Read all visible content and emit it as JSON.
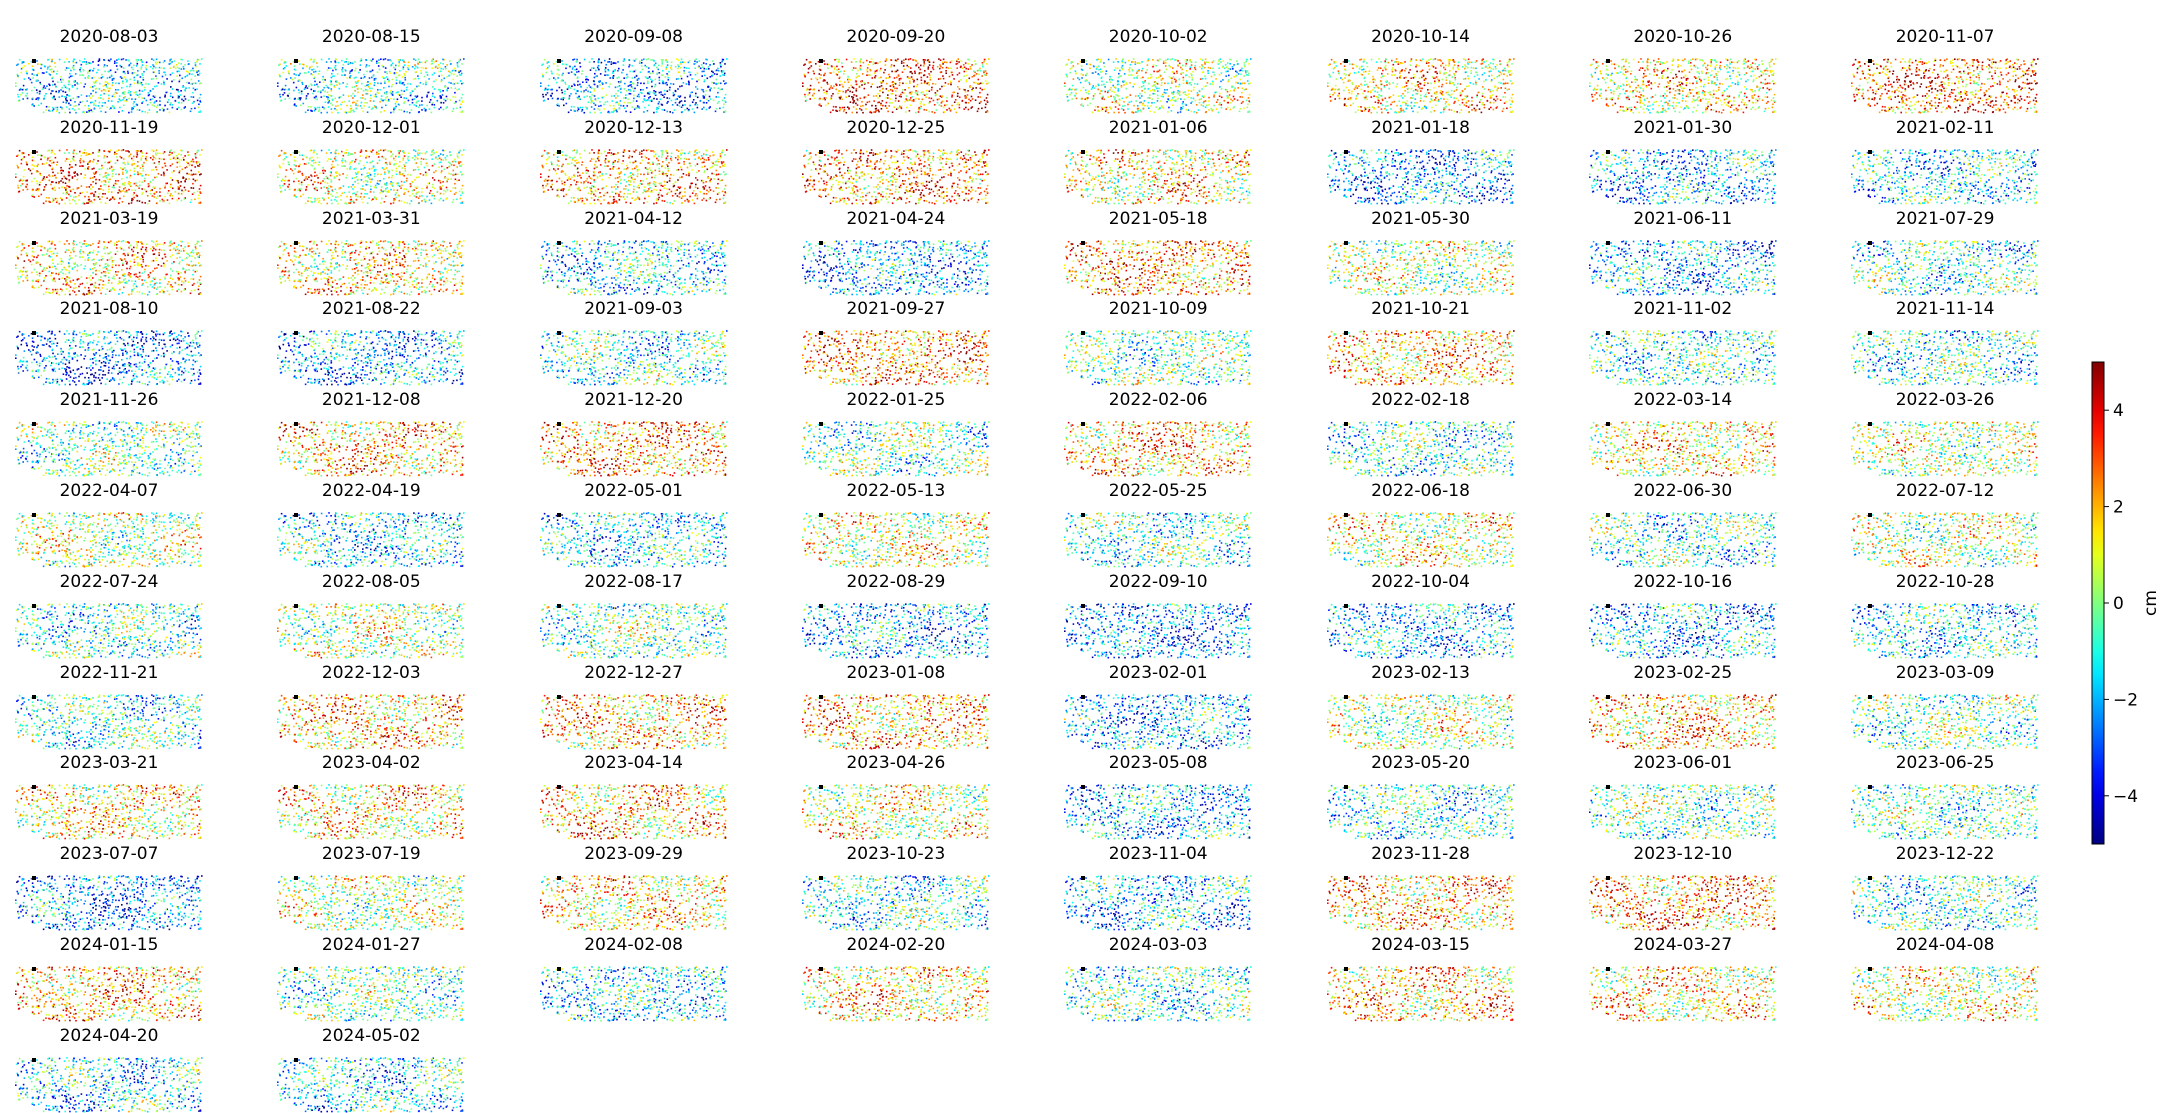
{
  "chart_data": {
    "type": "scatter",
    "figure": "grid of small-multiple displacement maps, one panel per acquisition date, points colored by displacement",
    "columns": 8,
    "panel_titles": [
      "2020-08-03",
      "2020-08-15",
      "2020-09-08",
      "2020-09-20",
      "2020-10-02",
      "2020-10-14",
      "2020-10-26",
      "2020-11-07",
      "2020-11-19",
      "2020-12-01",
      "2020-12-13",
      "2020-12-25",
      "2021-01-06",
      "2021-01-18",
      "2021-01-30",
      "2021-02-11",
      "2021-03-19",
      "2021-03-31",
      "2021-04-12",
      "2021-04-24",
      "2021-05-18",
      "2021-05-30",
      "2021-06-11",
      "2021-07-29",
      "2021-08-10",
      "2021-08-22",
      "2021-09-03",
      "2021-09-27",
      "2021-10-09",
      "2021-10-21",
      "2021-11-02",
      "2021-11-14",
      "2021-11-26",
      "2021-12-08",
      "2021-12-20",
      "2022-01-25",
      "2022-02-06",
      "2022-02-18",
      "2022-03-14",
      "2022-03-26",
      "2022-04-07",
      "2022-04-19",
      "2022-05-01",
      "2022-05-13",
      "2022-05-25",
      "2022-06-18",
      "2022-06-30",
      "2022-07-12",
      "2022-07-24",
      "2022-08-05",
      "2022-08-17",
      "2022-08-29",
      "2022-09-10",
      "2022-10-04",
      "2022-10-16",
      "2022-10-28",
      "2022-11-21",
      "2022-12-03",
      "2022-12-27",
      "2023-01-08",
      "2023-02-01",
      "2023-02-13",
      "2023-02-25",
      "2023-03-09",
      "2023-03-21",
      "2023-04-02",
      "2023-04-14",
      "2023-04-26",
      "2023-05-08",
      "2023-05-20",
      "2023-06-01",
      "2023-06-25",
      "2023-07-07",
      "2023-07-19",
      "2023-09-29",
      "2023-10-23",
      "2023-11-04",
      "2023-11-28",
      "2023-12-10",
      "2023-12-22",
      "2024-01-15",
      "2024-01-27",
      "2024-02-08",
      "2024-02-20",
      "2024-03-03",
      "2024-03-15",
      "2024-03-27",
      "2024-04-08",
      "2024-04-20",
      "2024-05-02"
    ],
    "panel_tendency": [
      -1.5,
      -1.0,
      -2.0,
      3.0,
      0.5,
      1.5,
      1.5,
      3.0,
      2.5,
      1.0,
      2.0,
      2.5,
      1.5,
      -2.5,
      -2.0,
      -1.5,
      1.5,
      1.5,
      -1.5,
      -2.0,
      2.5,
      0.5,
      -2.0,
      -1.0,
      -2.5,
      -2.0,
      -1.0,
      2.5,
      -0.5,
      2.0,
      -1.0,
      -1.0,
      -0.5,
      2.0,
      2.5,
      -0.5,
      2.0,
      -1.0,
      1.5,
      0.5,
      0.5,
      -1.5,
      -1.5,
      1.0,
      -1.0,
      1.0,
      -1.0,
      0.5,
      -1.0,
      0.5,
      -0.5,
      -2.0,
      -2.5,
      -2.0,
      -2.0,
      -1.5,
      -1.0,
      2.0,
      2.0,
      2.0,
      -2.0,
      0.5,
      2.0,
      -0.5,
      1.5,
      1.5,
      2.0,
      1.0,
      -2.0,
      -1.0,
      -0.5,
      -0.5,
      -2.5,
      0.5,
      1.5,
      -1.0,
      -2.0,
      2.0,
      2.5,
      -1.0,
      2.0,
      -0.5,
      -1.5,
      1.5,
      -1.0,
      2.0,
      1.5,
      1.0,
      -1.5,
      -1.5
    ],
    "colorscale": "jet",
    "colorbar": {
      "label": "cm",
      "vmin": -5,
      "vmax": 5,
      "ticks": [
        -4,
        -2,
        0,
        2,
        4
      ],
      "tick_labels": [
        "−4",
        "−2",
        "0",
        "2",
        "4"
      ]
    },
    "reference_point": "black",
    "axes_visible": false
  }
}
